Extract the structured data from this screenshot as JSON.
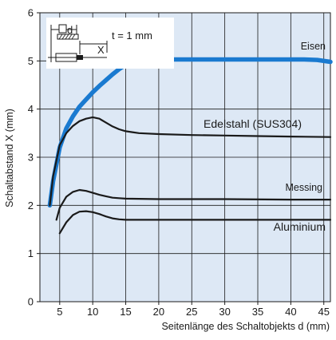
{
  "chart_data": {
    "type": "line",
    "xlabel": "Seitenlänge des Schaltobjekts d (mm)",
    "ylabel": "Schaltabstand X (mm)",
    "xlim": [
      2,
      46
    ],
    "ylim": [
      0,
      6
    ],
    "xticks": [
      "5",
      "10",
      "15",
      "20",
      "25",
      "30",
      "35",
      "40",
      "45"
    ],
    "yticks": [
      "0",
      "1",
      "2",
      "3",
      "4",
      "5",
      "6"
    ],
    "grid": true,
    "background": "#dde8f5",
    "inset": {
      "thickness_label": "t = 1 mm",
      "d_label": "d",
      "x_label": "X"
    },
    "series": [
      {
        "name": "Eisen",
        "color": "#1a7ad0",
        "x": [
          3.5,
          4,
          5,
          6,
          7,
          8,
          9,
          10,
          11,
          12,
          13,
          14,
          15,
          16,
          17,
          20,
          25,
          30,
          35,
          40,
          42,
          44,
          46
        ],
        "y": [
          2.0,
          2.5,
          3.2,
          3.6,
          3.85,
          4.05,
          4.2,
          4.35,
          4.48,
          4.6,
          4.72,
          4.83,
          4.92,
          4.98,
          5.03,
          5.03,
          5.03,
          5.03,
          5.03,
          5.03,
          5.03,
          5.02,
          4.98
        ]
      },
      {
        "name": "Edelstahl (SUS304)",
        "color": "#1a1a1a",
        "x": [
          3.5,
          4,
          5,
          6,
          7,
          8,
          9,
          10,
          11,
          12,
          13,
          14,
          15,
          16,
          17,
          20,
          25,
          30,
          35,
          40,
          46
        ],
        "y": [
          2.0,
          2.6,
          3.25,
          3.5,
          3.65,
          3.75,
          3.8,
          3.83,
          3.8,
          3.72,
          3.64,
          3.58,
          3.54,
          3.52,
          3.5,
          3.48,
          3.46,
          3.45,
          3.44,
          3.43,
          3.42
        ]
      },
      {
        "name": "Messing",
        "color": "#1a1a1a",
        "x": [
          4.5,
          5,
          6,
          7,
          8,
          9,
          10,
          11,
          12,
          13,
          14,
          15,
          20,
          30,
          40,
          46
        ],
        "y": [
          1.7,
          1.95,
          2.18,
          2.28,
          2.32,
          2.3,
          2.26,
          2.22,
          2.19,
          2.16,
          2.15,
          2.14,
          2.13,
          2.13,
          2.12,
          2.12
        ]
      },
      {
        "name": "Aluminium",
        "color": "#1a1a1a",
        "x": [
          5,
          6,
          7,
          8,
          9,
          10,
          11,
          12,
          13,
          14,
          15,
          20,
          30,
          40,
          46
        ],
        "y": [
          1.42,
          1.65,
          1.8,
          1.87,
          1.88,
          1.86,
          1.82,
          1.77,
          1.73,
          1.71,
          1.7,
          1.7,
          1.7,
          1.7,
          1.7
        ]
      }
    ]
  }
}
